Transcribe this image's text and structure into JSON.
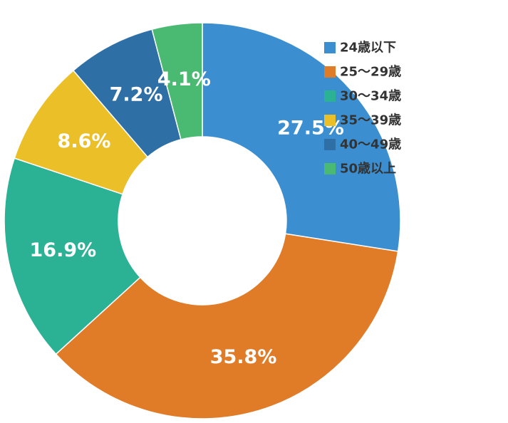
{
  "chart_data": {
    "type": "pie",
    "categories": [
      "24歳以下",
      "25～29歳",
      "30～34歳",
      "35～39歳",
      "40～49歳",
      "50歳以上"
    ],
    "values": [
      27.5,
      35.8,
      16.9,
      8.6,
      7.2,
      4.1
    ],
    "data_labels": [
      "27.5%",
      "35.8%",
      "16.9%",
      "8.6%",
      "7.2%",
      "4.1%"
    ],
    "colors": [
      "#3b8fd0",
      "#e07b27",
      "#2bb294",
      "#ebbf27",
      "#2e6fa6",
      "#4aba72"
    ],
    "unit": "%",
    "donut": true,
    "start": "top, clockwise",
    "legend_position": "top-right"
  }
}
